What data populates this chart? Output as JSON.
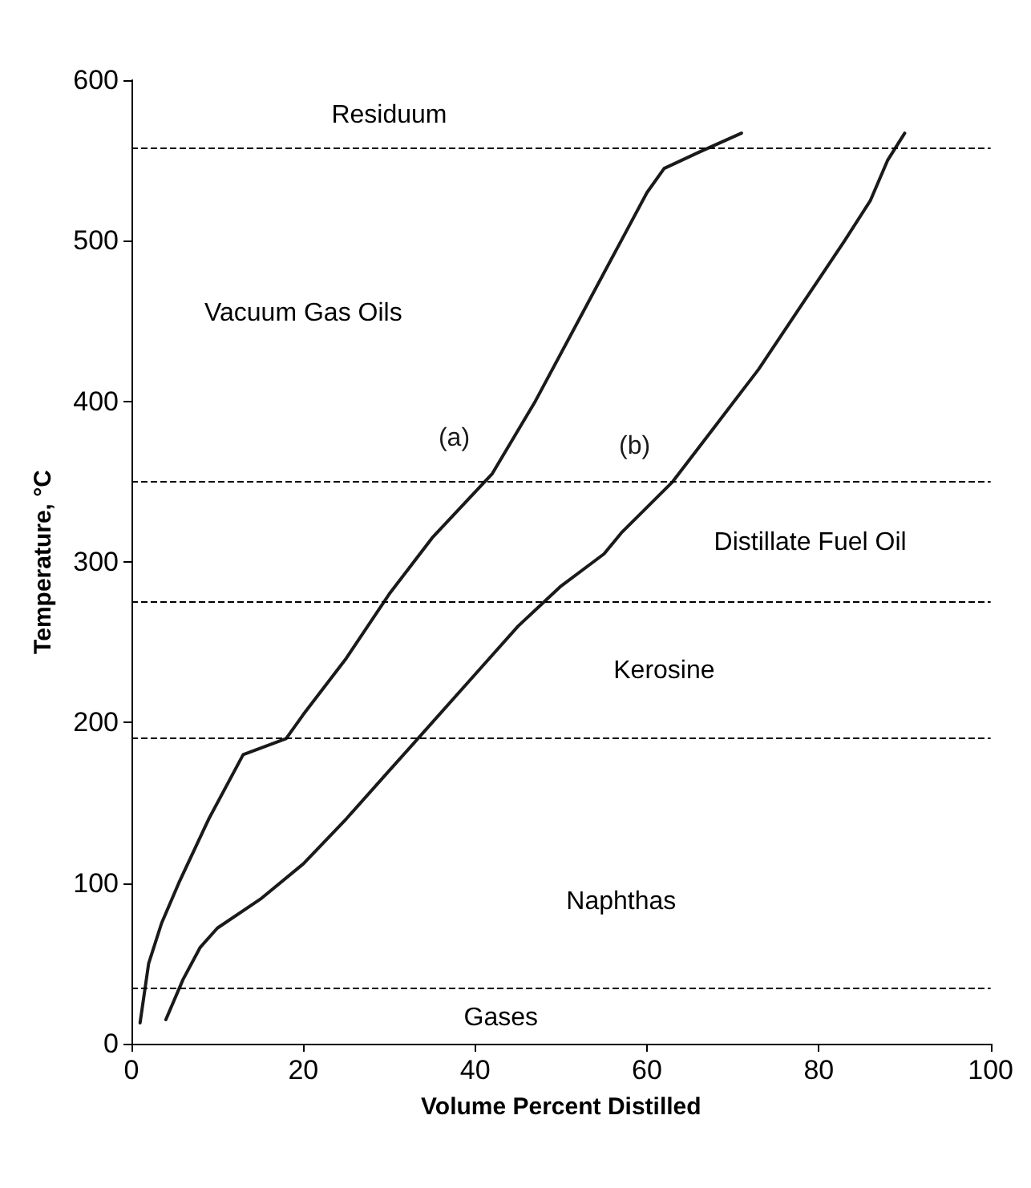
{
  "chart_data": {
    "type": "line",
    "xlabel": "Volume Percent Distilled",
    "ylabel": "Temperature, °C",
    "xlim": [
      0,
      100
    ],
    "xticks": [
      0,
      20,
      40,
      60,
      80,
      100
    ],
    "ylim": [
      0,
      600
    ],
    "yticks": [
      0,
      100,
      200,
      300,
      400,
      500,
      600
    ],
    "grid": false,
    "legend": false,
    "marker": "none",
    "line_style": "solid",
    "series": [
      {
        "name": "(a)",
        "color": "#1a1a1a",
        "x": [
          1,
          2,
          3.5,
          5.5,
          9,
          13,
          18,
          20,
          25,
          30,
          35,
          42,
          47,
          52,
          57,
          60,
          62,
          66,
          71
        ],
        "values": [
          13,
          50,
          75,
          100,
          140,
          180,
          190,
          205,
          240,
          280,
          315,
          355,
          400,
          450,
          500,
          530,
          545,
          555,
          567
        ]
      },
      {
        "name": "(b)",
        "color": "#1a1a1a",
        "x": [
          4,
          6,
          8,
          10,
          15,
          20,
          25,
          30,
          35,
          40,
          45,
          50,
          55,
          57,
          63,
          68,
          73,
          78,
          83,
          86,
          88,
          90
        ],
        "values": [
          15,
          40,
          60,
          72,
          90,
          112,
          140,
          170,
          200,
          230,
          260,
          285,
          305,
          318,
          350,
          385,
          420,
          460,
          500,
          525,
          550,
          567
        ]
      }
    ],
    "ref_lines": [
      {
        "axis": "y",
        "value": 35,
        "color": "#000000",
        "line_style": "dashed"
      },
      {
        "axis": "y",
        "value": 190,
        "color": "#000000",
        "line_style": "dashed"
      },
      {
        "axis": "y",
        "value": 275,
        "color": "#000000",
        "line_style": "dashed"
      },
      {
        "axis": "y",
        "value": 350,
        "color": "#000000",
        "line_style": "dashed"
      },
      {
        "axis": "y",
        "value": 558,
        "color": "#000000",
        "line_style": "dashed"
      }
    ],
    "annotations": [
      "Residuum",
      "Vacuum Gas Oils",
      "Distillate Fuel Oil",
      "Kerosine",
      "Naphthas",
      "Gases"
    ]
  }
}
